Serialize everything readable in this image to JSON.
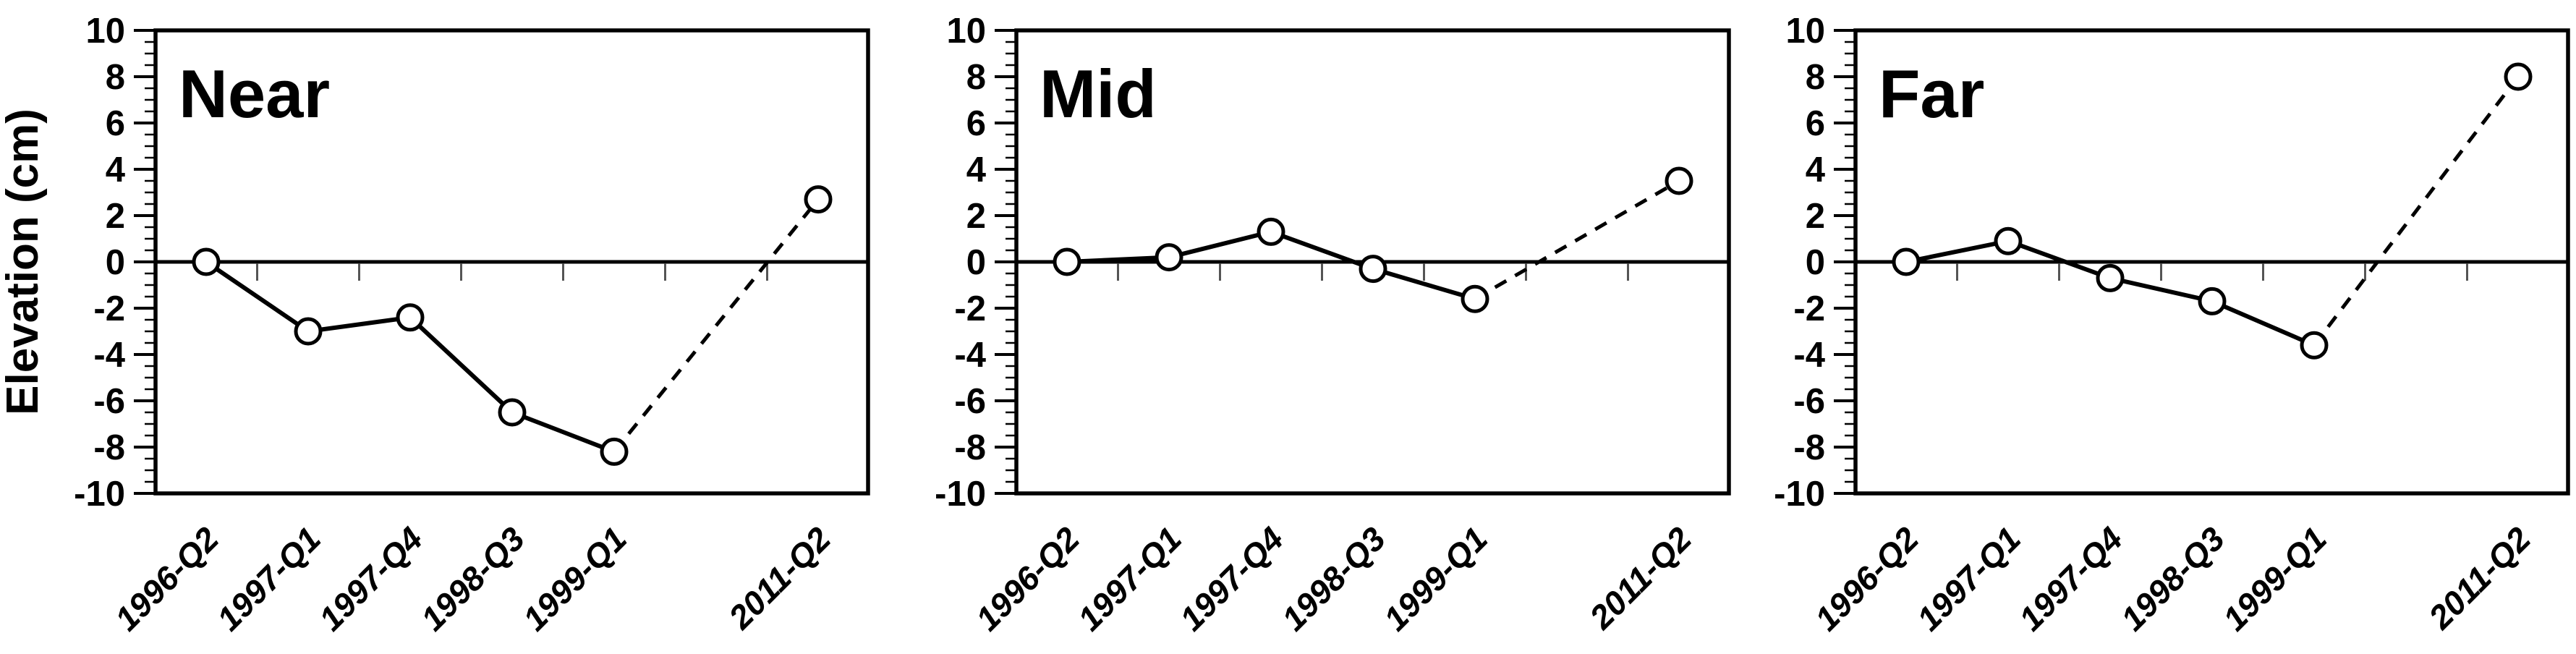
{
  "figure": {
    "ylabel": "Elevation (cm)",
    "background_color": "#ffffff",
    "line_color": "#000000",
    "marker_fill_color": "#ffffff",
    "zero_axis_tick_color": "#555555",
    "yaxis": {
      "ylim": [
        -10,
        10
      ],
      "major_tick_step": 2,
      "minor_tick_step": 0.5,
      "ytick_labels": [
        "10",
        "8",
        "6",
        "4",
        "2",
        "0",
        "-2",
        "-4",
        "-6",
        "-8",
        "-10"
      ]
    }
  },
  "chart_data": [
    {
      "type": "line",
      "title": "Near",
      "categories": [
        "1996-Q2",
        "1997-Q1",
        "1997-Q4",
        "1998-Q3",
        "1999-Q1",
        "2011-Q2"
      ],
      "values": [
        0.0,
        -3.0,
        -2.4,
        -6.5,
        -8.2,
        2.7
      ],
      "xlabel": "",
      "ylabel": "Elevation (cm)",
      "ylim": [
        -10,
        10
      ],
      "grid": false,
      "legend": "none",
      "marker": "open-circle",
      "solid_segment_last_index": 4,
      "dashed_segment": [
        4,
        5
      ],
      "x_slots": [
        0,
        1,
        2,
        3,
        4,
        6
      ],
      "x_axis_tick_slots": [
        0.5,
        1.5,
        2.5,
        3.5,
        4.5,
        5.5
      ]
    },
    {
      "type": "line",
      "title": "Mid",
      "categories": [
        "1996-Q2",
        "1997-Q1",
        "1997-Q4",
        "1998-Q3",
        "1999-Q1",
        "2011-Q2"
      ],
      "values": [
        0.0,
        0.2,
        1.3,
        -0.3,
        -1.6,
        3.5
      ],
      "xlabel": "",
      "ylabel": "Elevation (cm)",
      "ylim": [
        -10,
        10
      ],
      "grid": false,
      "legend": "none",
      "marker": "open-circle",
      "solid_segment_last_index": 4,
      "dashed_segment": [
        4,
        5
      ],
      "x_slots": [
        0,
        1,
        2,
        3,
        4,
        6
      ],
      "x_axis_tick_slots": [
        0.5,
        1.5,
        2.5,
        3.5,
        4.5,
        5.5
      ]
    },
    {
      "type": "line",
      "title": "Far",
      "categories": [
        "1996-Q2",
        "1997-Q1",
        "1997-Q4",
        "1998-Q3",
        "1999-Q1",
        "2011-Q2"
      ],
      "values": [
        0.0,
        0.9,
        -0.7,
        -1.7,
        -3.6,
        8.0
      ],
      "xlabel": "",
      "ylabel": "Elevation (cm)",
      "ylim": [
        -10,
        10
      ],
      "grid": false,
      "legend": "none",
      "marker": "open-circle",
      "solid_segment_last_index": 4,
      "dashed_segment": [
        4,
        5
      ],
      "x_slots": [
        0,
        1,
        2,
        3,
        4,
        6
      ],
      "x_axis_tick_slots": [
        0.5,
        1.5,
        2.5,
        3.5,
        4.5,
        5.5
      ]
    }
  ]
}
